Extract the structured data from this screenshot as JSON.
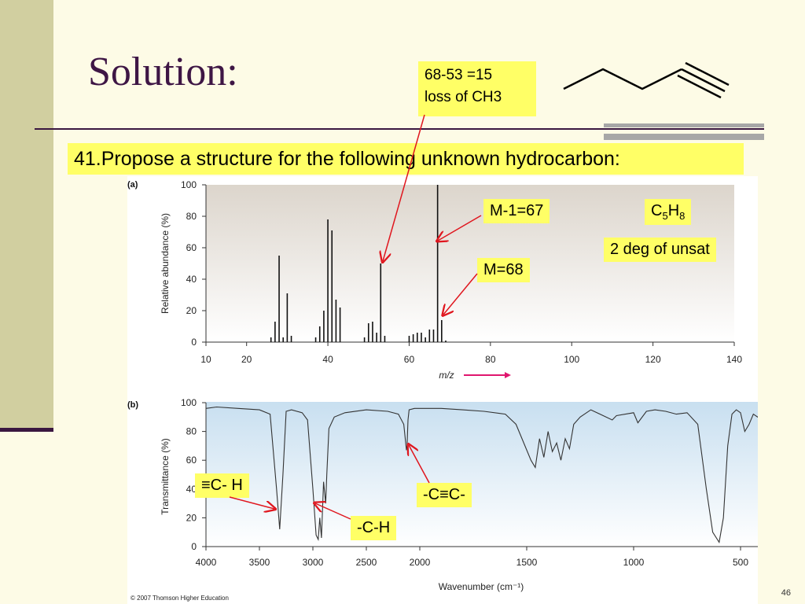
{
  "slide": {
    "title": "Solution:",
    "question": "41.Propose a structure for the following unknown hydrocarbon:",
    "loss_note_line1": "68-53 =15",
    "loss_note_line2": "loss of CH3",
    "m_minus_1": "M-1=67",
    "formula": "C",
    "formula_sub1": "5",
    "formula_h": "H",
    "formula_sub2": "8",
    "unsat": "2 deg of unsat",
    "m_label": "M=68",
    "ch_alkyne": "≡C- H",
    "ch_alkyl": "-C-H",
    "cc_triple": "-C≡C-",
    "slide_number": "46",
    "copyright": "© 2007 Thomson Higher Education",
    "accent_color": "#3a1740",
    "highlight_color": "#ffff66"
  },
  "chart_data": [
    {
      "type": "bar",
      "panel": "(a)",
      "xlabel": "m/z",
      "ylabel": "Relative abundance (%)",
      "xlim": [
        10,
        140
      ],
      "ylim": [
        0,
        100
      ],
      "xticks": [
        10,
        20,
        40,
        60,
        80,
        100,
        120,
        140
      ],
      "yticks": [
        0,
        20,
        40,
        60,
        80,
        100
      ],
      "x": [
        26,
        27,
        28,
        29,
        30,
        31,
        37,
        38,
        39,
        40,
        41,
        42,
        43,
        49,
        50,
        51,
        52,
        53,
        54,
        60,
        61,
        62,
        63,
        64,
        65,
        66,
        67,
        68,
        69
      ],
      "values": [
        3,
        13,
        55,
        3,
        31,
        4,
        3,
        10,
        20,
        78,
        71,
        27,
        22,
        3,
        12,
        13,
        6,
        50,
        4,
        4,
        5,
        6,
        6,
        3,
        8,
        8,
        100,
        14,
        1
      ]
    },
    {
      "type": "line",
      "panel": "(b)",
      "xlabel": "Wavenumber (cm⁻¹)",
      "ylabel": "Transmittance (%)",
      "xlim": [
        4000,
        400
      ],
      "ylim": [
        0,
        100
      ],
      "xticks": [
        4000,
        3500,
        3000,
        2500,
        2000,
        1500,
        1000,
        500
      ],
      "yticks": [
        0,
        20,
        40,
        60,
        80,
        100
      ],
      "x": [
        4000,
        3900,
        3700,
        3500,
        3400,
        3340,
        3310,
        3280,
        3250,
        3200,
        3100,
        3050,
        3000,
        2970,
        2950,
        2935,
        2920,
        2900,
        2880,
        2870,
        2850,
        2800,
        2700,
        2500,
        2300,
        2200,
        2150,
        2125,
        2119,
        2110,
        2100,
        2050,
        2000,
        1900,
        1800,
        1700,
        1600,
        1550,
        1480,
        1460,
        1440,
        1420,
        1400,
        1380,
        1360,
        1340,
        1320,
        1300,
        1280,
        1250,
        1200,
        1100,
        1080,
        1000,
        980,
        940,
        900,
        850,
        800,
        750,
        700,
        660,
        630,
        600,
        580,
        560,
        540,
        520,
        500,
        480,
        460,
        440,
        420,
        400
      ],
      "values": [
        96,
        97,
        96,
        95,
        92,
        40,
        12,
        50,
        94,
        95,
        93,
        88,
        40,
        8,
        5,
        20,
        6,
        45,
        30,
        50,
        82,
        90,
        93,
        95,
        94,
        92,
        85,
        67,
        70,
        88,
        95,
        96,
        96,
        96,
        95,
        94,
        92,
        85,
        60,
        55,
        75,
        62,
        80,
        66,
        72,
        60,
        75,
        68,
        85,
        90,
        95,
        88,
        91,
        93,
        86,
        94,
        95,
        94,
        92,
        93,
        85,
        40,
        10,
        3,
        20,
        70,
        92,
        95,
        93,
        80,
        85,
        92,
        90,
        92
      ]
    }
  ]
}
